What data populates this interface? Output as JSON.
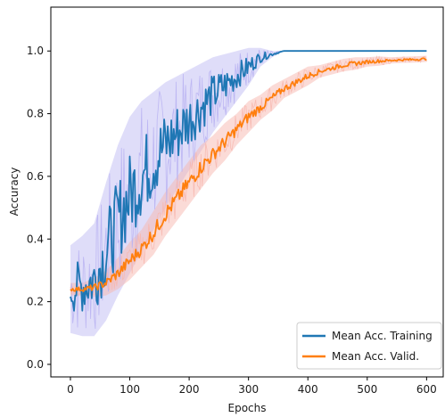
{
  "chart_data": {
    "type": "line",
    "title": "",
    "xlabel": "Epochs",
    "ylabel": "Accuracy",
    "xlim": [
      -33,
      628
    ],
    "ylim": [
      -0.04,
      1.14
    ],
    "xticks": [
      0,
      100,
      200,
      300,
      400,
      500,
      600
    ],
    "yticks": [
      0.0,
      0.2,
      0.4,
      0.6,
      0.8,
      1.0
    ],
    "ytick_labels": [
      "0.0",
      "0.2",
      "0.4",
      "0.6",
      "0.8",
      "1.0"
    ],
    "grid": false,
    "legend_position": "lower-right",
    "series": [
      {
        "name": "Mean Acc. Training",
        "color": "#1f77b4",
        "band_color": "#b9b3f2",
        "x": [
          0,
          20,
          40,
          60,
          80,
          100,
          120,
          140,
          160,
          180,
          200,
          220,
          240,
          260,
          280,
          300,
          320,
          340,
          360,
          380,
          400,
          420,
          440,
          460,
          480,
          500,
          520,
          540,
          560,
          580,
          600
        ],
        "y": [
          0.24,
          0.25,
          0.27,
          0.36,
          0.46,
          0.54,
          0.6,
          0.65,
          0.7,
          0.74,
          0.78,
          0.82,
          0.86,
          0.89,
          0.92,
          0.95,
          0.98,
          0.99,
          1.0,
          1.0,
          1.0,
          1.0,
          1.0,
          1.0,
          1.0,
          1.0,
          1.0,
          1.0,
          1.0,
          1.0,
          1.0
        ],
        "band": [
          0.14,
          0.16,
          0.18,
          0.22,
          0.24,
          0.25,
          0.24,
          0.22,
          0.2,
          0.18,
          0.16,
          0.14,
          0.12,
          0.1,
          0.08,
          0.06,
          0.03,
          0.01,
          0.0,
          0.0,
          0.0,
          0.0,
          0.0,
          0.0,
          0.0,
          0.0,
          0.0,
          0.0,
          0.0,
          0.0,
          0.0
        ]
      },
      {
        "name": "Mean Acc. Valid.",
        "color": "#ff7f0e",
        "band_color": "#f7b8b0",
        "x": [
          0,
          20,
          40,
          60,
          80,
          100,
          120,
          140,
          160,
          180,
          200,
          220,
          240,
          260,
          280,
          300,
          320,
          340,
          360,
          380,
          400,
          420,
          440,
          460,
          480,
          500,
          520,
          540,
          560,
          580,
          600
        ],
        "y": [
          0.24,
          0.24,
          0.245,
          0.26,
          0.29,
          0.33,
          0.37,
          0.42,
          0.48,
          0.53,
          0.58,
          0.63,
          0.67,
          0.71,
          0.75,
          0.79,
          0.82,
          0.85,
          0.88,
          0.9,
          0.92,
          0.935,
          0.945,
          0.955,
          0.96,
          0.965,
          0.968,
          0.97,
          0.972,
          0.973,
          0.975
        ],
        "band": [
          0.02,
          0.02,
          0.03,
          0.04,
          0.05,
          0.06,
          0.06,
          0.07,
          0.07,
          0.07,
          0.07,
          0.07,
          0.06,
          0.06,
          0.05,
          0.05,
          0.04,
          0.04,
          0.03,
          0.03,
          0.03,
          0.02,
          0.02,
          0.02,
          0.02,
          0.015,
          0.015,
          0.01,
          0.01,
          0.01,
          0.01
        ]
      }
    ]
  }
}
